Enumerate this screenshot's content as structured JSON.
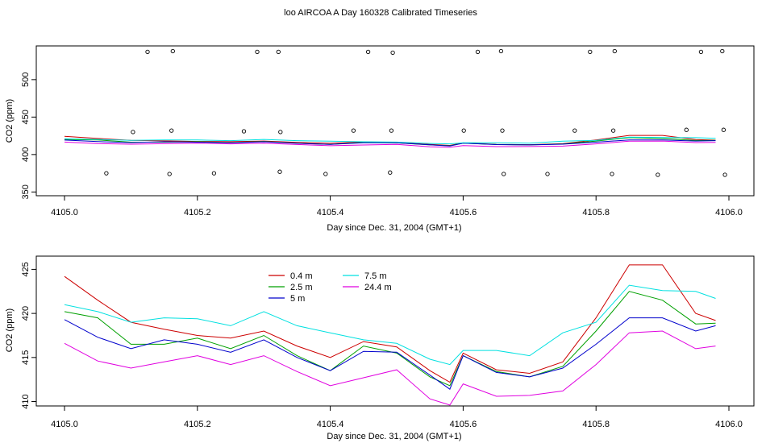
{
  "figure": {
    "title": "loo AIRCOA A  Day 160328  Calibrated Timeseries"
  },
  "colors": {
    "h0_4": "#cc0000",
    "h2_5": "#00a000",
    "h5": "#0000cc",
    "h7_5": "#00e0e0",
    "h24_4": "#e000e0",
    "axis": "#000000"
  },
  "chart_data": [
    {
      "type": "line+scatter",
      "title": "",
      "xlabel": "Day since Dec. 31, 2004 (GMT+1)",
      "ylabel": "CO2 (ppm)",
      "xlim": [
        4105.0,
        4106.0
      ],
      "ylim": [
        345,
        545
      ],
      "x_ticks": [
        "4105.0",
        "4105.2",
        "4105.4",
        "4105.6",
        "4105.8",
        "4106.0"
      ],
      "y_ticks": [
        "350",
        "400",
        "450",
        "500"
      ],
      "legend": "none",
      "raw_points": [
        {
          "x": 4105.063,
          "y": 375
        },
        {
          "x": 4105.103,
          "y": 430
        },
        {
          "x": 4105.125,
          "y": 537
        },
        {
          "x": 4105.158,
          "y": 374
        },
        {
          "x": 4105.161,
          "y": 432
        },
        {
          "x": 4105.163,
          "y": 538
        },
        {
          "x": 4105.225,
          "y": 375
        },
        {
          "x": 4105.27,
          "y": 431
        },
        {
          "x": 4105.29,
          "y": 537
        },
        {
          "x": 4105.322,
          "y": 537
        },
        {
          "x": 4105.324,
          "y": 377
        },
        {
          "x": 4105.325,
          "y": 430
        },
        {
          "x": 4105.393,
          "y": 374
        },
        {
          "x": 4105.435,
          "y": 432
        },
        {
          "x": 4105.457,
          "y": 537
        },
        {
          "x": 4105.49,
          "y": 376
        },
        {
          "x": 4105.492,
          "y": 432
        },
        {
          "x": 4105.494,
          "y": 536
        },
        {
          "x": 4105.601,
          "y": 432
        },
        {
          "x": 4105.622,
          "y": 537
        },
        {
          "x": 4105.657,
          "y": 538
        },
        {
          "x": 4105.659,
          "y": 432
        },
        {
          "x": 4105.661,
          "y": 374
        },
        {
          "x": 4105.727,
          "y": 374
        },
        {
          "x": 4105.768,
          "y": 432
        },
        {
          "x": 4105.791,
          "y": 537
        },
        {
          "x": 4105.824,
          "y": 374
        },
        {
          "x": 4105.826,
          "y": 432
        },
        {
          "x": 4105.828,
          "y": 538
        },
        {
          "x": 4105.893,
          "y": 373
        },
        {
          "x": 4105.936,
          "y": 433
        },
        {
          "x": 4105.958,
          "y": 537
        },
        {
          "x": 4105.99,
          "y": 538
        },
        {
          "x": 4105.992,
          "y": 433
        },
        {
          "x": 4105.994,
          "y": 373
        }
      ]
    },
    {
      "type": "line",
      "title": "",
      "xlabel": "Day since Dec. 31, 2004 (GMT+1)",
      "ylabel": "CO2 (ppm)",
      "xlim": [
        4105.0,
        4106.0
      ],
      "ylim": [
        409.5,
        426.5
      ],
      "x_ticks": [
        "4105.0",
        "4105.2",
        "4105.4",
        "4105.6",
        "4105.8",
        "4106.0"
      ],
      "y_ticks": [
        "410",
        "415",
        "420",
        "425"
      ],
      "legend": "top-left",
      "x": [
        4105.0,
        4105.05,
        4105.1,
        4105.15,
        4105.2,
        4105.25,
        4105.3,
        4105.35,
        4105.4,
        4105.45,
        4105.5,
        4105.55,
        4105.58,
        4105.6,
        4105.65,
        4105.7,
        4105.75,
        4105.8,
        4105.85,
        4105.9,
        4105.95,
        4105.98
      ],
      "series": [
        {
          "name": "0.4 m",
          "values": [
            424.2,
            421.5,
            419.0,
            418.2,
            417.5,
            417.2,
            418.0,
            416.3,
            415.0,
            416.8,
            416.2,
            413.5,
            412.2,
            415.5,
            413.6,
            413.2,
            414.5,
            419.5,
            425.5,
            425.5,
            420.0,
            419.2
          ]
        },
        {
          "name": "2.5 m",
          "values": [
            420.2,
            419.5,
            416.5,
            416.5,
            417.2,
            416.0,
            417.5,
            415.2,
            413.5,
            416.3,
            415.5,
            412.8,
            411.8,
            415.2,
            413.4,
            412.8,
            414.0,
            418.0,
            422.5,
            421.5,
            418.8,
            418.9
          ]
        },
        {
          "name": "5 m",
          "values": [
            419.3,
            417.3,
            416.0,
            417.0,
            416.5,
            415.6,
            417.0,
            415.0,
            413.5,
            415.7,
            415.6,
            413.0,
            411.4,
            415.2,
            413.3,
            412.8,
            413.8,
            416.5,
            419.5,
            419.5,
            418.0,
            418.6
          ]
        },
        {
          "name": "7.5 m",
          "values": [
            421.0,
            420.2,
            419.0,
            419.5,
            419.4,
            418.6,
            420.2,
            418.6,
            417.8,
            417.0,
            416.6,
            414.8,
            414.2,
            415.8,
            415.8,
            415.2,
            417.8,
            419.0,
            423.2,
            422.6,
            422.5,
            421.7
          ]
        },
        {
          "name": "24.4 m",
          "values": [
            416.6,
            414.6,
            413.8,
            414.5,
            415.2,
            414.2,
            415.2,
            413.4,
            411.8,
            412.7,
            413.6,
            410.3,
            409.6,
            412.0,
            410.6,
            410.7,
            411.2,
            414.2,
            417.8,
            418.0,
            416.0,
            416.3
          ]
        }
      ]
    }
  ]
}
